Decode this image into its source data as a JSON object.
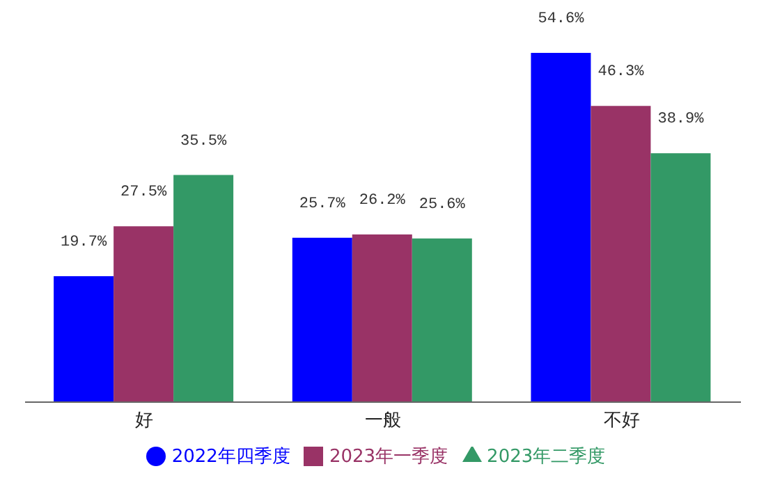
{
  "chart_data": {
    "type": "bar",
    "categories": [
      "好",
      "一般",
      "不好"
    ],
    "series": [
      {
        "name": "2022年四季度",
        "color": "#0000ff",
        "marker": "circle",
        "values": [
          19.7,
          25.7,
          54.6
        ],
        "value_labels": [
          "19.7%",
          "25.7%",
          "54.6%"
        ]
      },
      {
        "name": "2023年一季度",
        "color": "#993366",
        "marker": "square",
        "values": [
          27.5,
          26.2,
          46.3
        ],
        "value_labels": [
          "27.5%",
          "26.2%",
          "46.3%"
        ]
      },
      {
        "name": "2023年二季度",
        "color": "#339966",
        "marker": "triangle",
        "values": [
          35.5,
          25.6,
          38.9
        ],
        "value_labels": [
          "35.5%",
          "25.6%",
          "38.9%"
        ]
      }
    ],
    "legend": "bottom",
    "grid": false
  }
}
